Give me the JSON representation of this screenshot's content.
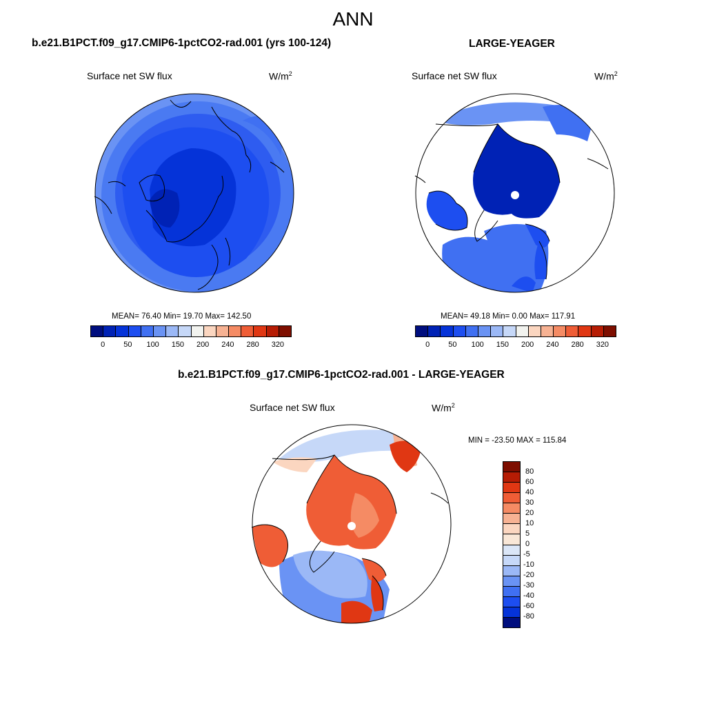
{
  "title": "ANN",
  "colors": {
    "abs_scale": [
      "#000e7e",
      "#0022b5",
      "#0533d8",
      "#1d4ef0",
      "#4070f2",
      "#6a93f4",
      "#9bb8f6",
      "#c6d8f8",
      "#f2f3ef",
      "#fbd6c0",
      "#f7b293",
      "#f58b64",
      "#ef5d36",
      "#e03713",
      "#b61c04",
      "#7e0e00"
    ],
    "diff_scale": [
      "#7e0e00",
      "#b61c04",
      "#e03713",
      "#ef5d36",
      "#f58b64",
      "#f7b293",
      "#fbd6c0",
      "#f9e7d7",
      "#dbe6f7",
      "#c6d8f8",
      "#9bb8f6",
      "#6a93f4",
      "#4070f2",
      "#1d4ef0",
      "#0533d8",
      "#000e7e"
    ]
  },
  "panels": {
    "left": {
      "title": "b.e21.B1PCT.f09_g17.CMIP6-1pctCO2-rad.001 (yrs 100-124)",
      "variable": "Surface net SW flux",
      "units_base": "W/m",
      "units_exp": "2",
      "stats": "MEAN=  76.40  Min=  19.70  Max= 142.50",
      "ticks": [
        "0",
        "50",
        "100",
        "150",
        "200",
        "240",
        "280",
        "320"
      ]
    },
    "right": {
      "title": "LARGE-YEAGER",
      "variable": "Surface net SW flux",
      "units_base": "W/m",
      "units_exp": "2",
      "stats": "MEAN=  49.18  Min=   0.00  Max= 117.91",
      "ticks": [
        "0",
        "50",
        "100",
        "150",
        "200",
        "240",
        "280",
        "320"
      ]
    },
    "diff": {
      "title": "b.e21.B1PCT.f09_g17.CMIP6-1pctCO2-rad.001 - LARGE-YEAGER",
      "variable": "Surface net SW flux",
      "units_base": "W/m",
      "units_exp": "2",
      "stats": "MIN = -23.50 MAX = 115.84",
      "ticks": [
        "80",
        "60",
        "40",
        "30",
        "20",
        "10",
        "5",
        "0",
        "-5",
        "-10",
        "-20",
        "-30",
        "-40",
        "-60",
        "-80"
      ]
    }
  }
}
